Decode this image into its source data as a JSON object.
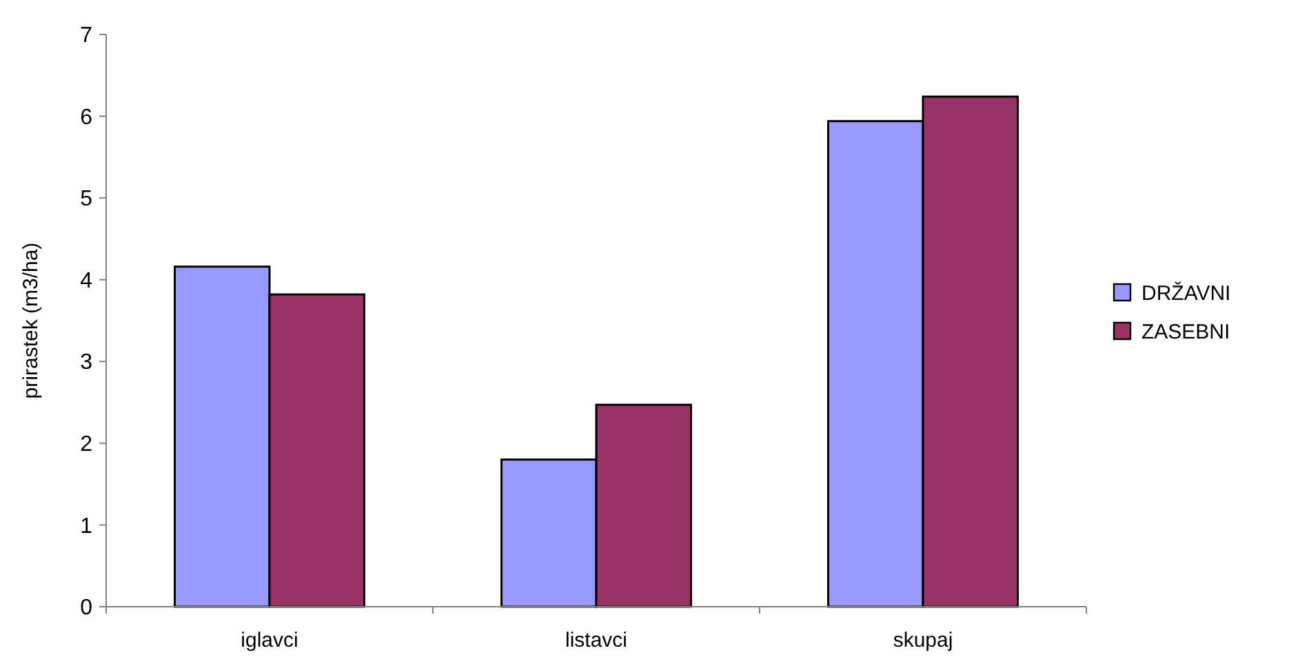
{
  "chart_data": {
    "type": "bar",
    "ylabel": "prirastek (m3/ha)",
    "categories": [
      "iglavci",
      "listavci",
      "skupaj"
    ],
    "series": [
      {
        "name": "DRŽAVNI",
        "color": "#9999ff",
        "values": [
          4.16,
          1.8,
          5.94
        ]
      },
      {
        "name": "ZASEBNI",
        "color": "#993366",
        "values": [
          3.82,
          2.47,
          6.24
        ]
      }
    ],
    "ylim": [
      0,
      7
    ],
    "yticks": [
      0,
      1,
      2,
      3,
      4,
      5,
      6,
      7
    ],
    "legend": "right"
  }
}
